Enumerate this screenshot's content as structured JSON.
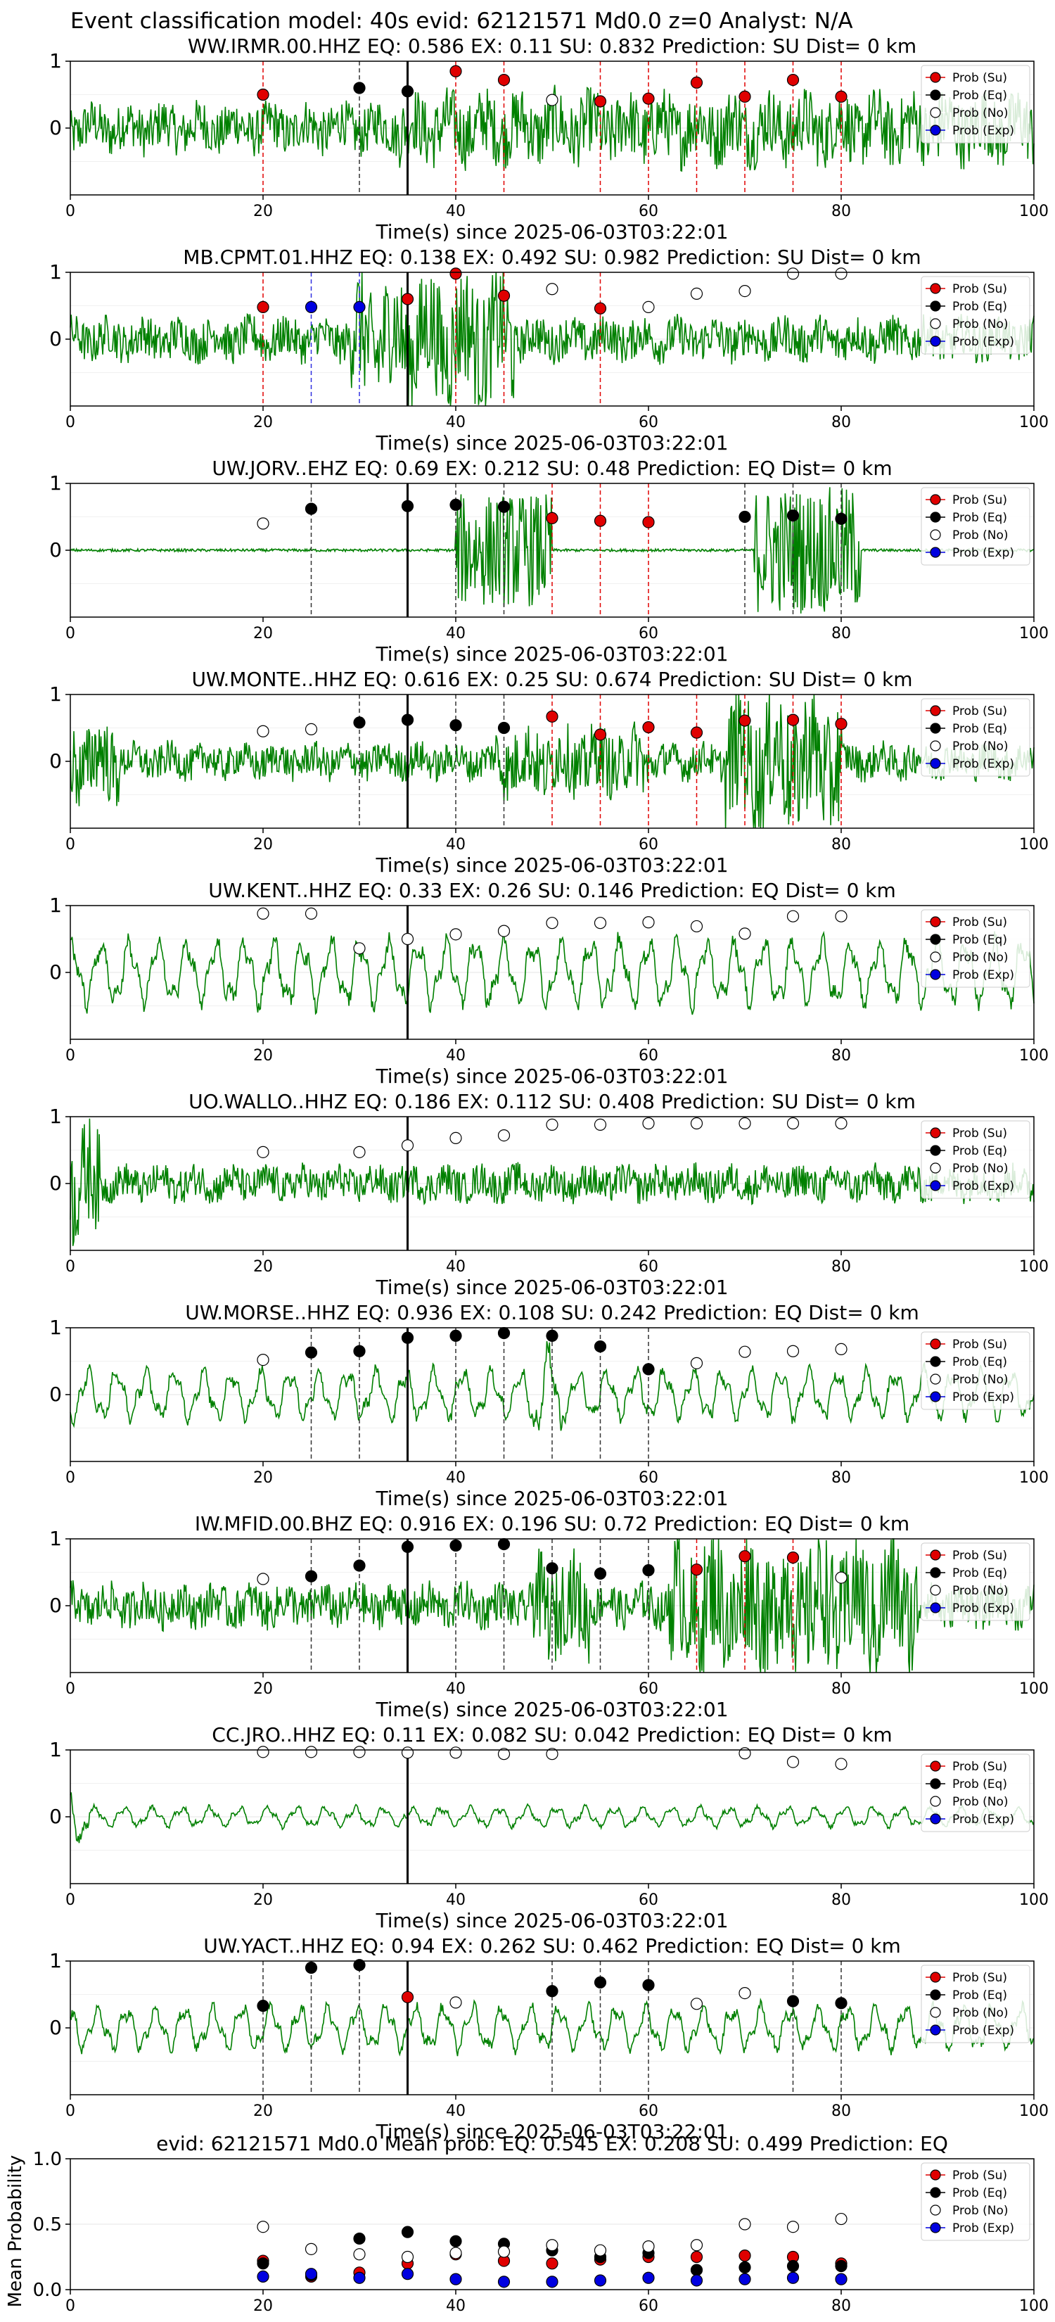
{
  "figure_title": "Event classification model: 40s evid: 62121571 Md0.0 z=0 Analyst: N/A",
  "legend_labels": [
    "Prob (Su)",
    "Prob (Eq)",
    "Prob (No)",
    "Prob (Exp)"
  ],
  "colors": {
    "su": "#e00000",
    "eq": "#000000",
    "no": "#ffffff",
    "exp": "#0000e0",
    "trace": "#008000"
  },
  "chart_data": [
    {
      "type": "line",
      "title": "WW.IRMR.00.HHZ   EQ: 0.586  EX: 0.11  SU: 0.832   Prediction: SU    Dist= 0 km",
      "xlabel": "Time(s) since 2025-06-03T03:22:01",
      "xlim": [
        0,
        100
      ],
      "ylim": [
        -1,
        1
      ],
      "xticks": [
        0,
        20,
        40,
        60,
        80,
        100
      ],
      "yticks": [
        0,
        1
      ],
      "waveform_style": "noisy",
      "waveform_amplitude": 0.35,
      "bursts": [
        [
          34,
          100,
          0.5
        ]
      ],
      "reference_time": 35,
      "markers": [
        {
          "t": 20,
          "cls": "su",
          "p": 0.5
        },
        {
          "t": 30,
          "cls": "eq",
          "p": 0.6
        },
        {
          "t": 35,
          "cls": "eq",
          "p": 0.55
        },
        {
          "t": 40,
          "cls": "su",
          "p": 0.85
        },
        {
          "t": 45,
          "cls": "su",
          "p": 0.72
        },
        {
          "t": 50,
          "cls": "no",
          "p": 0.42
        },
        {
          "t": 55,
          "cls": "su",
          "p": 0.4
        },
        {
          "t": 60,
          "cls": "su",
          "p": 0.44
        },
        {
          "t": 65,
          "cls": "su",
          "p": 0.68
        },
        {
          "t": 70,
          "cls": "su",
          "p": 0.47
        },
        {
          "t": 75,
          "cls": "su",
          "p": 0.72
        },
        {
          "t": 80,
          "cls": "su",
          "p": 0.47
        }
      ]
    },
    {
      "type": "line",
      "title": "MB.CPMT.01.HHZ   EQ: 0.138  EX: 0.492  SU: 0.982   Prediction: SU    Dist= 0 km",
      "xlabel": "Time(s) since 2025-06-03T03:22:01",
      "xlim": [
        0,
        100
      ],
      "ylim": [
        -1,
        1
      ],
      "xticks": [
        0,
        20,
        40,
        60,
        80,
        100
      ],
      "yticks": [
        0,
        1
      ],
      "waveform_style": "noisy",
      "waveform_amplitude": 0.3,
      "bursts": [
        [
          29,
          46,
          0.9
        ]
      ],
      "reference_time": 35,
      "markers": [
        {
          "t": 20,
          "cls": "su",
          "p": 0.48
        },
        {
          "t": 25,
          "cls": "exp",
          "p": 0.48
        },
        {
          "t": 30,
          "cls": "exp",
          "p": 0.48
        },
        {
          "t": 35,
          "cls": "su",
          "p": 0.6
        },
        {
          "t": 40,
          "cls": "su",
          "p": 0.98
        },
        {
          "t": 45,
          "cls": "su",
          "p": 0.65
        },
        {
          "t": 50,
          "cls": "no",
          "p": 0.75
        },
        {
          "t": 55,
          "cls": "su",
          "p": 0.46
        },
        {
          "t": 60,
          "cls": "no",
          "p": 0.48
        },
        {
          "t": 65,
          "cls": "no",
          "p": 0.68
        },
        {
          "t": 70,
          "cls": "no",
          "p": 0.72
        },
        {
          "t": 75,
          "cls": "no",
          "p": 0.98
        },
        {
          "t": 80,
          "cls": "no",
          "p": 0.98
        }
      ]
    },
    {
      "type": "line",
      "title": "UW.JORV..EHZ   EQ: 0.69  EX: 0.212  SU: 0.48   Prediction: EQ    Dist= 0 km",
      "xlabel": "Time(s) since 2025-06-03T03:22:01",
      "xlim": [
        0,
        100
      ],
      "ylim": [
        -1,
        1
      ],
      "xticks": [
        0,
        20,
        40,
        60,
        80,
        100
      ],
      "yticks": [
        0,
        1
      ],
      "waveform_style": "quiet",
      "waveform_amplitude": 0.02,
      "bursts": [
        [
          40,
          50,
          0.85
        ],
        [
          71,
          82,
          0.95
        ]
      ],
      "reference_time": 35,
      "markers": [
        {
          "t": 20,
          "cls": "no",
          "p": 0.4
        },
        {
          "t": 25,
          "cls": "eq",
          "p": 0.62
        },
        {
          "t": 35,
          "cls": "eq",
          "p": 0.66
        },
        {
          "t": 40,
          "cls": "eq",
          "p": 0.68
        },
        {
          "t": 45,
          "cls": "eq",
          "p": 0.65
        },
        {
          "t": 50,
          "cls": "su",
          "p": 0.48
        },
        {
          "t": 55,
          "cls": "su",
          "p": 0.44
        },
        {
          "t": 60,
          "cls": "su",
          "p": 0.42
        },
        {
          "t": 70,
          "cls": "eq",
          "p": 0.5
        },
        {
          "t": 75,
          "cls": "eq",
          "p": 0.52
        },
        {
          "t": 80,
          "cls": "eq",
          "p": 0.47
        }
      ]
    },
    {
      "type": "line",
      "title": "UW.MONTE..HHZ   EQ: 0.616  EX: 0.25  SU: 0.674   Prediction: SU    Dist= 0 km",
      "xlabel": "Time(s) since 2025-06-03T03:22:01",
      "xlim": [
        0,
        100
      ],
      "ylim": [
        -1,
        1
      ],
      "xticks": [
        0,
        20,
        40,
        60,
        80,
        100
      ],
      "yticks": [
        0,
        1
      ],
      "waveform_style": "noisy",
      "waveform_amplitude": 0.25,
      "bursts": [
        [
          0,
          5,
          0.6
        ],
        [
          44,
          60,
          0.5
        ],
        [
          68,
          80,
          0.95
        ]
      ],
      "reference_time": 35,
      "markers": [
        {
          "t": 20,
          "cls": "no",
          "p": 0.45
        },
        {
          "t": 25,
          "cls": "no",
          "p": 0.48
        },
        {
          "t": 30,
          "cls": "eq",
          "p": 0.58
        },
        {
          "t": 35,
          "cls": "eq",
          "p": 0.62
        },
        {
          "t": 40,
          "cls": "eq",
          "p": 0.54
        },
        {
          "t": 45,
          "cls": "eq",
          "p": 0.5
        },
        {
          "t": 50,
          "cls": "su",
          "p": 0.67
        },
        {
          "t": 55,
          "cls": "su",
          "p": 0.4
        },
        {
          "t": 60,
          "cls": "su",
          "p": 0.51
        },
        {
          "t": 65,
          "cls": "su",
          "p": 0.43
        },
        {
          "t": 70,
          "cls": "su",
          "p": 0.61
        },
        {
          "t": 75,
          "cls": "su",
          "p": 0.62
        },
        {
          "t": 80,
          "cls": "su",
          "p": 0.56
        }
      ]
    },
    {
      "type": "line",
      "title": "UW.KENT..HHZ   EQ: 0.33  EX: 0.26  SU: 0.146   Prediction: EQ    Dist= 0 km",
      "xlabel": "Time(s) since 2025-06-03T03:22:01",
      "xlim": [
        0,
        100
      ],
      "ylim": [
        -1,
        1
      ],
      "xticks": [
        0,
        20,
        40,
        60,
        80,
        100
      ],
      "yticks": [
        0,
        1
      ],
      "waveform_style": "wavy",
      "waveform_amplitude": 0.6,
      "bursts": [],
      "reference_time": 35,
      "markers": [
        {
          "t": 20,
          "cls": "no",
          "p": 0.88
        },
        {
          "t": 25,
          "cls": "no",
          "p": 0.88
        },
        {
          "t": 30,
          "cls": "no",
          "p": 0.36
        },
        {
          "t": 35,
          "cls": "no",
          "p": 0.5
        },
        {
          "t": 40,
          "cls": "no",
          "p": 0.57
        },
        {
          "t": 45,
          "cls": "no",
          "p": 0.62
        },
        {
          "t": 50,
          "cls": "no",
          "p": 0.74
        },
        {
          "t": 55,
          "cls": "no",
          "p": 0.74
        },
        {
          "t": 60,
          "cls": "no",
          "p": 0.75
        },
        {
          "t": 65,
          "cls": "no",
          "p": 0.69
        },
        {
          "t": 70,
          "cls": "no",
          "p": 0.58
        },
        {
          "t": 75,
          "cls": "no",
          "p": 0.84
        },
        {
          "t": 80,
          "cls": "no",
          "p": 0.84
        }
      ]
    },
    {
      "type": "line",
      "title": "UO.WALLO..HHZ   EQ: 0.186  EX: 0.112  SU: 0.408   Prediction: SU    Dist= 0 km",
      "xlabel": "Time(s) since 2025-06-03T03:22:01",
      "xlim": [
        0,
        100
      ],
      "ylim": [
        -1,
        1
      ],
      "xticks": [
        0,
        20,
        40,
        60,
        80,
        100
      ],
      "yticks": [
        0,
        1
      ],
      "waveform_style": "noisy",
      "waveform_amplitude": 0.25,
      "bursts": [
        [
          0,
          3,
          0.8
        ]
      ],
      "reference_time": 35,
      "markers": [
        {
          "t": 20,
          "cls": "no",
          "p": 0.47
        },
        {
          "t": 30,
          "cls": "no",
          "p": 0.47
        },
        {
          "t": 35,
          "cls": "no",
          "p": 0.57
        },
        {
          "t": 40,
          "cls": "no",
          "p": 0.68
        },
        {
          "t": 45,
          "cls": "no",
          "p": 0.72
        },
        {
          "t": 50,
          "cls": "no",
          "p": 0.88
        },
        {
          "t": 55,
          "cls": "no",
          "p": 0.88
        },
        {
          "t": 60,
          "cls": "no",
          "p": 0.9
        },
        {
          "t": 65,
          "cls": "no",
          "p": 0.9
        },
        {
          "t": 70,
          "cls": "no",
          "p": 0.9
        },
        {
          "t": 75,
          "cls": "no",
          "p": 0.9
        },
        {
          "t": 80,
          "cls": "no",
          "p": 0.9
        }
      ]
    },
    {
      "type": "line",
      "title": "UW.MORSE..HHZ   EQ: 0.936  EX: 0.108  SU: 0.242   Prediction: EQ    Dist= 0 km",
      "xlabel": "Time(s) since 2025-06-03T03:22:01",
      "xlim": [
        0,
        100
      ],
      "ylim": [
        -1,
        1
      ],
      "xticks": [
        0,
        20,
        40,
        60,
        80,
        100
      ],
      "yticks": [
        0,
        1
      ],
      "waveform_style": "wavy",
      "waveform_amplitude": 0.45,
      "bursts": [
        [
          48,
          51,
          0.9
        ]
      ],
      "reference_time": 35,
      "markers": [
        {
          "t": 20,
          "cls": "no",
          "p": 0.52
        },
        {
          "t": 25,
          "cls": "eq",
          "p": 0.63
        },
        {
          "t": 30,
          "cls": "eq",
          "p": 0.65
        },
        {
          "t": 35,
          "cls": "eq",
          "p": 0.85
        },
        {
          "t": 40,
          "cls": "eq",
          "p": 0.88
        },
        {
          "t": 45,
          "cls": "eq",
          "p": 0.92
        },
        {
          "t": 50,
          "cls": "eq",
          "p": 0.88
        },
        {
          "t": 55,
          "cls": "eq",
          "p": 0.72
        },
        {
          "t": 60,
          "cls": "eq",
          "p": 0.38
        },
        {
          "t": 65,
          "cls": "no",
          "p": 0.47
        },
        {
          "t": 70,
          "cls": "no",
          "p": 0.64
        },
        {
          "t": 75,
          "cls": "no",
          "p": 0.65
        },
        {
          "t": 80,
          "cls": "no",
          "p": 0.68
        }
      ]
    },
    {
      "type": "line",
      "title": "IW.MFID.00.BHZ   EQ: 0.916  EX: 0.196  SU: 0.72   Prediction: EQ    Dist= 0 km",
      "xlabel": "Time(s) since 2025-06-03T03:22:01",
      "xlim": [
        0,
        100
      ],
      "ylim": [
        -1,
        1
      ],
      "xticks": [
        0,
        20,
        40,
        60,
        80,
        100
      ],
      "yticks": [
        0,
        1
      ],
      "waveform_style": "noisy",
      "waveform_amplitude": 0.3,
      "bursts": [
        [
          48,
          54,
          0.7
        ],
        [
          62,
          88,
          0.95
        ]
      ],
      "reference_time": 35,
      "markers": [
        {
          "t": 20,
          "cls": "no",
          "p": 0.4
        },
        {
          "t": 25,
          "cls": "eq",
          "p": 0.44
        },
        {
          "t": 30,
          "cls": "eq",
          "p": 0.6
        },
        {
          "t": 35,
          "cls": "eq",
          "p": 0.88
        },
        {
          "t": 40,
          "cls": "eq",
          "p": 0.9
        },
        {
          "t": 45,
          "cls": "eq",
          "p": 0.92
        },
        {
          "t": 50,
          "cls": "eq",
          "p": 0.56
        },
        {
          "t": 55,
          "cls": "eq",
          "p": 0.48
        },
        {
          "t": 60,
          "cls": "eq",
          "p": 0.53
        },
        {
          "t": 65,
          "cls": "su",
          "p": 0.54
        },
        {
          "t": 70,
          "cls": "su",
          "p": 0.74
        },
        {
          "t": 75,
          "cls": "su",
          "p": 0.72
        },
        {
          "t": 80,
          "cls": "no",
          "p": 0.42
        }
      ]
    },
    {
      "type": "line",
      "title": "CC.JRO..HHZ   EQ: 0.11  EX: 0.082  SU: 0.042   Prediction: EQ    Dist= 0 km",
      "xlabel": "Time(s) since 2025-06-03T03:22:01",
      "xlim": [
        0,
        100
      ],
      "ylim": [
        -1,
        1
      ],
      "xticks": [
        0,
        20,
        40,
        60,
        80,
        100
      ],
      "yticks": [
        0,
        1
      ],
      "waveform_style": "wavy",
      "waveform_amplitude": 0.18,
      "bursts": [
        [
          0,
          2,
          0.5
        ]
      ],
      "reference_time": 35,
      "markers": [
        {
          "t": 20,
          "cls": "no",
          "p": 0.97
        },
        {
          "t": 25,
          "cls": "no",
          "p": 0.97
        },
        {
          "t": 30,
          "cls": "no",
          "p": 0.97
        },
        {
          "t": 35,
          "cls": "no",
          "p": 0.96
        },
        {
          "t": 40,
          "cls": "no",
          "p": 0.96
        },
        {
          "t": 45,
          "cls": "no",
          "p": 0.94
        },
        {
          "t": 50,
          "cls": "no",
          "p": 0.94
        },
        {
          "t": 70,
          "cls": "no",
          "p": 0.95
        },
        {
          "t": 75,
          "cls": "no",
          "p": 0.82
        },
        {
          "t": 80,
          "cls": "no",
          "p": 0.79
        }
      ]
    },
    {
      "type": "line",
      "title": "UW.YACT..HHZ   EQ: 0.94  EX: 0.262  SU: 0.462   Prediction: EQ    Dist= 0 km",
      "xlabel": "Time(s) since 2025-06-03T03:22:01",
      "xlim": [
        0,
        100
      ],
      "ylim": [
        -1,
        1
      ],
      "xticks": [
        0,
        20,
        40,
        60,
        80,
        100
      ],
      "yticks": [
        0,
        1
      ],
      "waveform_style": "wavy",
      "waveform_amplitude": 0.4,
      "bursts": [],
      "reference_time": 35,
      "markers": [
        {
          "t": 20,
          "cls": "eq",
          "p": 0.33
        },
        {
          "t": 25,
          "cls": "eq",
          "p": 0.9
        },
        {
          "t": 30,
          "cls": "eq",
          "p": 0.94
        },
        {
          "t": 35,
          "cls": "su",
          "p": 0.46
        },
        {
          "t": 40,
          "cls": "no",
          "p": 0.38
        },
        {
          "t": 50,
          "cls": "eq",
          "p": 0.55
        },
        {
          "t": 55,
          "cls": "eq",
          "p": 0.68
        },
        {
          "t": 60,
          "cls": "eq",
          "p": 0.64
        },
        {
          "t": 65,
          "cls": "no",
          "p": 0.36
        },
        {
          "t": 70,
          "cls": "no",
          "p": 0.52
        },
        {
          "t": 75,
          "cls": "eq",
          "p": 0.4
        },
        {
          "t": 80,
          "cls": "eq",
          "p": 0.37
        }
      ]
    },
    {
      "type": "scatter",
      "title": "evid: 62121571  Md0.0   Mean prob:   EQ: 0.545  EX: 0.208  SU: 0.499   Prediction: EQ",
      "ylabel": "Mean Probability",
      "xlim": [
        0,
        100
      ],
      "ylim": [
        0,
        1
      ],
      "xticks": [
        0,
        20,
        40,
        60,
        80,
        100
      ],
      "yticks": [
        0.0,
        0.5,
        1.0
      ],
      "ytick_labels": [
        "0.0",
        "0.5",
        "1.0"
      ],
      "x": [
        20,
        25,
        30,
        35,
        40,
        45,
        50,
        55,
        60,
        65,
        70,
        75,
        80
      ],
      "series": [
        {
          "name": "Prob (Su)",
          "cls": "su",
          "values": [
            0.22,
            0.1,
            0.13,
            0.2,
            0.27,
            0.22,
            0.2,
            0.23,
            0.25,
            0.25,
            0.26,
            0.25,
            0.2
          ]
        },
        {
          "name": "Prob (Eq)",
          "cls": "eq",
          "values": [
            0.2,
            0.11,
            0.39,
            0.44,
            0.37,
            0.35,
            0.3,
            0.25,
            0.28,
            0.15,
            0.17,
            0.18,
            0.18
          ]
        },
        {
          "name": "Prob (No)",
          "cls": "no",
          "values": [
            0.48,
            0.31,
            0.27,
            0.25,
            0.28,
            0.29,
            0.34,
            0.3,
            0.33,
            0.34,
            0.5,
            0.48,
            0.54
          ]
        },
        {
          "name": "Prob (Exp)",
          "cls": "exp",
          "values": [
            0.1,
            0.12,
            0.09,
            0.12,
            0.08,
            0.06,
            0.06,
            0.07,
            0.09,
            0.07,
            0.08,
            0.09,
            0.08
          ]
        }
      ]
    }
  ]
}
